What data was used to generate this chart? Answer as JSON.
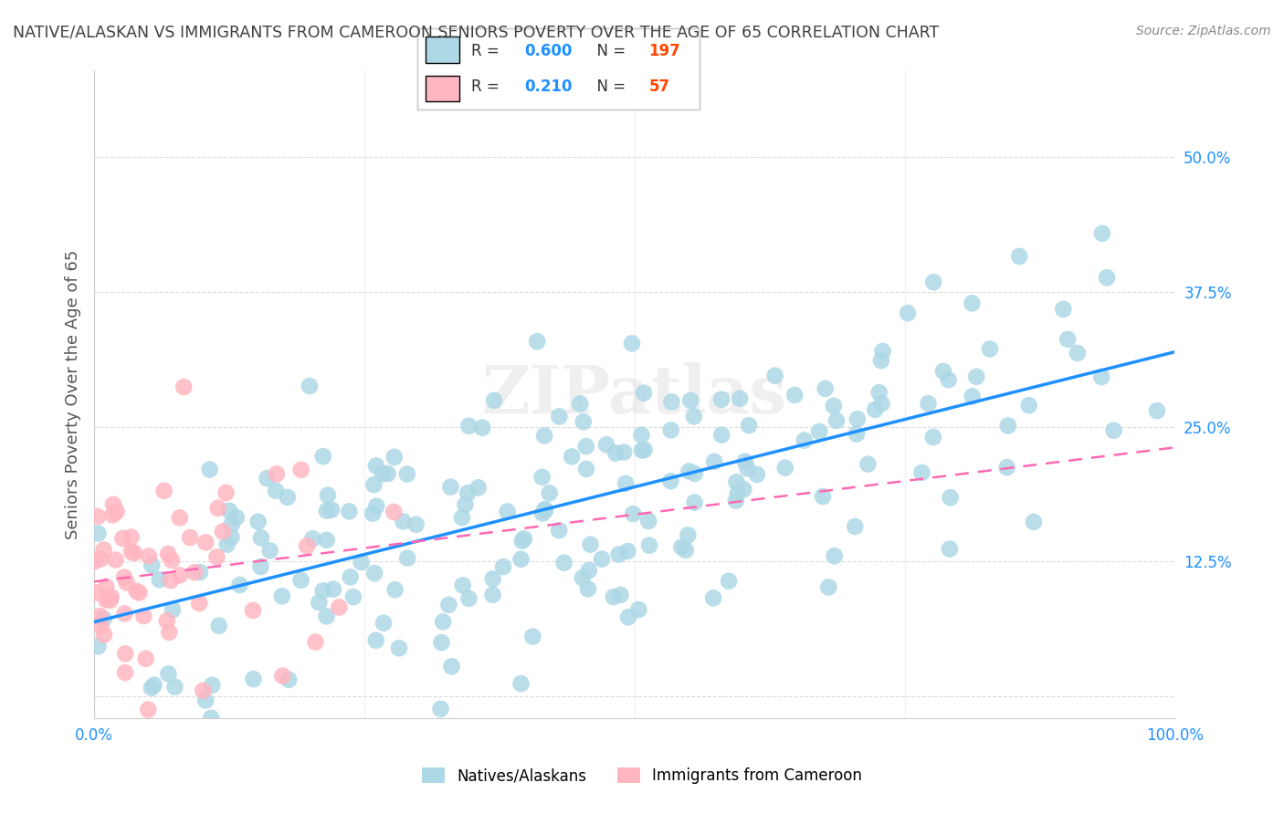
{
  "title": "NATIVE/ALASKAN VS IMMIGRANTS FROM CAMEROON SENIORS POVERTY OVER THE AGE OF 65 CORRELATION CHART",
  "source": "Source: ZipAtlas.com",
  "ylabel": "Seniors Poverty Over the Age of 65",
  "xlim": [
    0,
    1.0
  ],
  "ylim": [
    -0.02,
    0.58
  ],
  "yticks": [
    0.0,
    0.125,
    0.25,
    0.375,
    0.5
  ],
  "ytick_labels": [
    "",
    "12.5%",
    "25.0%",
    "37.5%",
    "50.0%"
  ],
  "xticks": [
    0.0,
    0.25,
    0.5,
    0.75,
    1.0
  ],
  "xtick_labels": [
    "0.0%",
    "",
    "",
    "",
    "100.0%"
  ],
  "blue_R": 0.6,
  "blue_N": 197,
  "pink_R": 0.21,
  "pink_N": 57,
  "blue_color": "#ADD8E6",
  "pink_color": "#FFB6C1",
  "blue_line_color": "#1E90FF",
  "pink_line_color": "#FF69B4",
  "watermark": "ZIPatlas",
  "background_color": "#FFFFFF",
  "grid_color": "#CCCCCC",
  "title_color": "#404040",
  "seed": 42
}
